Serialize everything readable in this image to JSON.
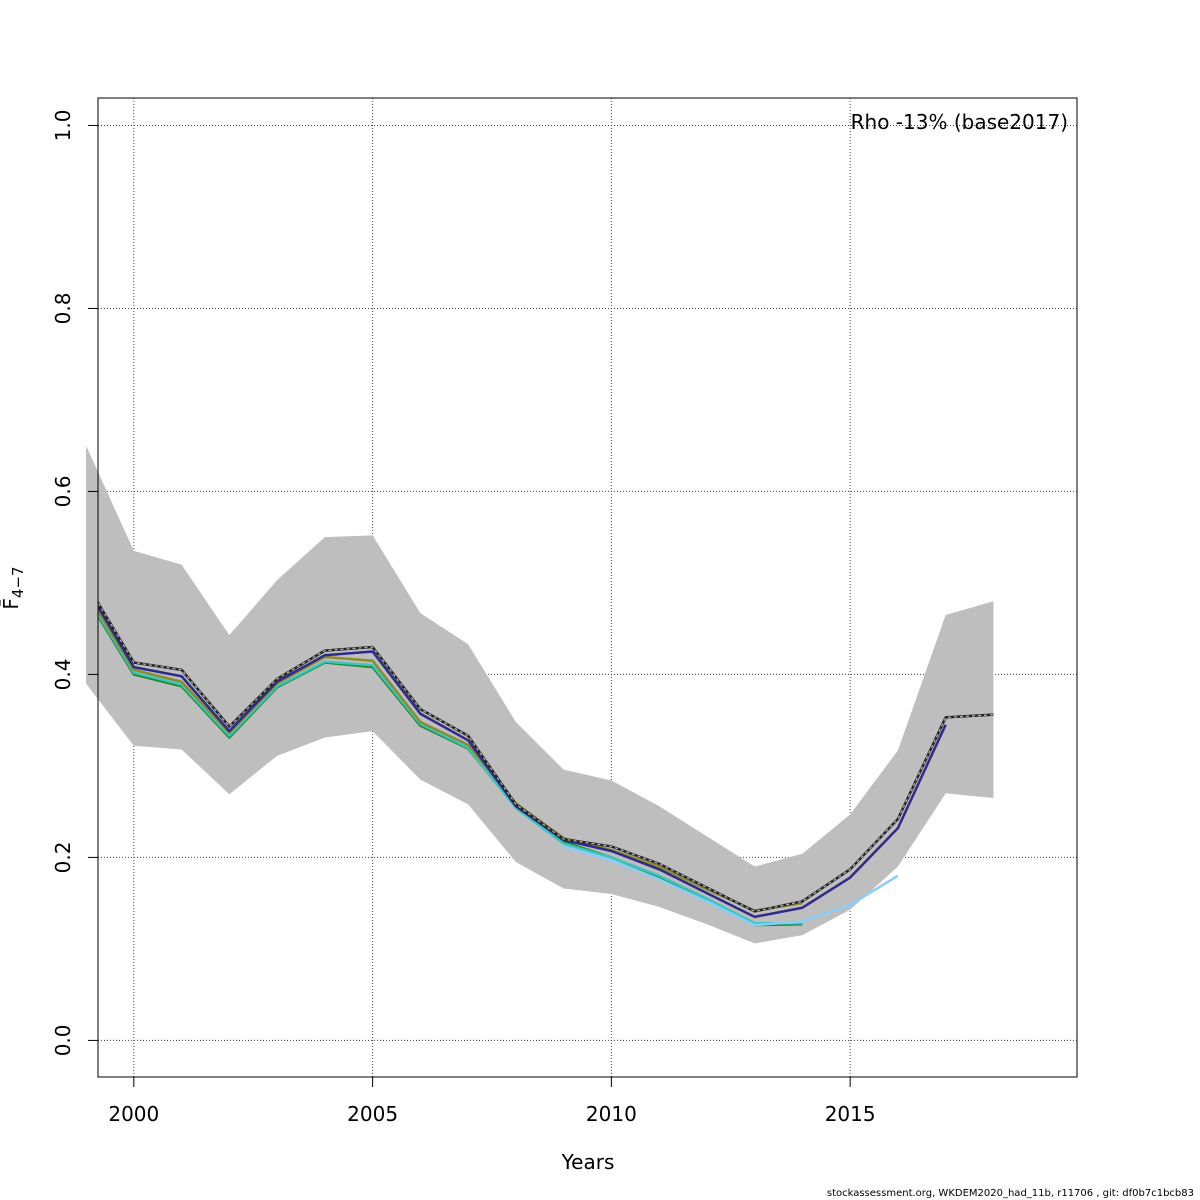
{
  "chart_data": {
    "type": "line",
    "title": "",
    "xlabel": "Years",
    "ylabel": "F̄",
    "ylabel_subscript": "4−7",
    "xlim": [
      1999.25,
      2019.75
    ],
    "ylim": [
      -0.04,
      1.03
    ],
    "x_ticks": [
      2000,
      2005,
      2010,
      2015
    ],
    "y_ticks": [
      0.0,
      0.2,
      0.4,
      0.6,
      0.8,
      1.0
    ],
    "x_tick_labels": [
      "2000",
      "2005",
      "2010",
      "2015"
    ],
    "y_tick_labels": [
      "0.0",
      "0.2",
      "0.4",
      "0.6",
      "0.8",
      "1.0"
    ],
    "grid": true,
    "annotation": "Rho -13% (base2017)",
    "confidence_band": {
      "color": "#bebebe",
      "x": [
        1999,
        2000,
        2001,
        2002,
        2003,
        2004,
        2005,
        2006,
        2007,
        2008,
        2009,
        2010,
        2011,
        2012,
        2013,
        2014,
        2015,
        2016,
        2017,
        2018
      ],
      "upper": [
        0.65,
        0.535,
        0.52,
        0.443,
        0.503,
        0.55,
        0.552,
        0.467,
        0.433,
        0.348,
        0.296,
        0.284,
        0.256,
        0.223,
        0.19,
        0.204,
        0.247,
        0.317,
        0.465,
        0.48
      ],
      "lower": [
        0.39,
        0.322,
        0.318,
        0.269,
        0.311,
        0.331,
        0.338,
        0.285,
        0.258,
        0.195,
        0.166,
        0.16,
        0.146,
        0.127,
        0.106,
        0.115,
        0.143,
        0.19,
        0.27,
        0.265
      ]
    },
    "series": [
      {
        "color": "#222222",
        "dashed_overlay": true,
        "x": [
          1999,
          2000,
          2001,
          2002,
          2003,
          2004,
          2005,
          2006,
          2007,
          2008,
          2009,
          2010,
          2011,
          2012,
          2013,
          2014,
          2015,
          2016,
          2017,
          2018
        ],
        "values": [
          0.5,
          0.413,
          0.405,
          0.343,
          0.395,
          0.426,
          0.43,
          0.362,
          0.333,
          0.258,
          0.22,
          0.212,
          0.193,
          0.167,
          0.141,
          0.152,
          0.187,
          0.242,
          0.353,
          0.356
        ]
      },
      {
        "color": "#2e2a8c",
        "x": [
          1999,
          2000,
          2001,
          2002,
          2003,
          2004,
          2005,
          2006,
          2007,
          2008,
          2009,
          2010,
          2011,
          2012,
          2013,
          2014,
          2015,
          2016,
          2017
        ],
        "values": [
          0.496,
          0.408,
          0.398,
          0.338,
          0.392,
          0.421,
          0.425,
          0.357,
          0.328,
          0.256,
          0.219,
          0.207,
          0.187,
          0.161,
          0.135,
          0.145,
          0.178,
          0.232,
          0.345
        ]
      },
      {
        "color": "#8c8c2a",
        "x": [
          1999,
          2000,
          2001,
          2002,
          2003,
          2004,
          2005,
          2006,
          2007,
          2008,
          2009,
          2010,
          2011,
          2012,
          2013,
          2014
        ],
        "values": [
          0.49,
          0.405,
          0.392,
          0.336,
          0.39,
          0.419,
          0.415,
          0.348,
          0.323,
          0.259,
          0.221,
          0.208,
          0.19,
          0.165,
          0.142,
          0.15
        ]
      },
      {
        "color": "#3cc5c0",
        "x": [
          1999,
          2000,
          2001,
          2002,
          2003,
          2004,
          2005,
          2006,
          2007,
          2008,
          2009,
          2010,
          2011,
          2012,
          2013,
          2014
        ],
        "values": [
          0.487,
          0.402,
          0.389,
          0.333,
          0.387,
          0.414,
          0.41,
          0.346,
          0.32,
          0.254,
          0.215,
          0.2,
          0.18,
          0.155,
          0.128,
          0.128
        ]
      },
      {
        "color": "#87cefa",
        "x": [
          2009,
          2010,
          2011,
          2012,
          2013,
          2014,
          2015,
          2016
        ],
        "values": [
          0.212,
          0.197,
          0.176,
          0.152,
          0.126,
          0.13,
          0.148,
          0.18
        ]
      },
      {
        "color": "#1a8a2a",
        "x": [
          1999,
          2000,
          2001,
          2002,
          2003,
          2004,
          2005,
          2006,
          2007,
          2008,
          2009,
          2010,
          2011,
          2012,
          2013,
          2014
        ],
        "values": [
          0.485,
          0.4,
          0.387,
          0.331,
          0.386,
          0.413,
          0.408,
          0.344,
          0.319,
          0.255,
          0.217,
          0.2,
          0.179,
          0.153,
          0.126,
          0.127
        ]
      }
    ]
  },
  "footer_text": "stockassessment.org, WKDEM2020_had_11b, r11706 , git: df0b7c1bcb83"
}
